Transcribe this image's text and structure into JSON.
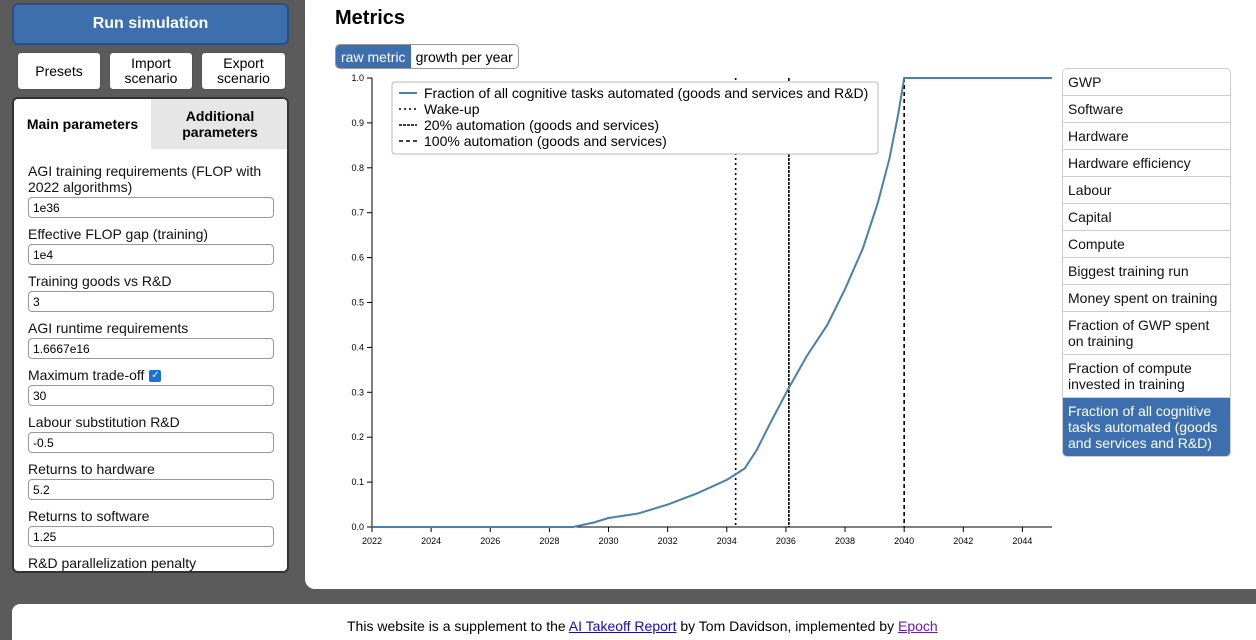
{
  "sidebar": {
    "run_label": "Run simulation",
    "presets_label": "Presets",
    "import_label": "Import scenario",
    "export_label": "Export scenario",
    "tabs": [
      "Main parameters",
      "Additional parameters"
    ],
    "params": [
      {
        "label": "AGI training requirements (FLOP with 2022 algorithms)",
        "value": "1e36"
      },
      {
        "label": "Effective FLOP gap (training)",
        "value": "1e4"
      },
      {
        "label": "Training goods vs R&D",
        "value": "3"
      },
      {
        "label": "AGI runtime requirements",
        "value": "1.6667e16"
      },
      {
        "label": "Maximum trade-off",
        "value": "30"
      },
      {
        "label": "Labour substitution R&D",
        "value": "-0.5"
      },
      {
        "label": "Returns to hardware",
        "value": "5.2"
      },
      {
        "label": "Returns to software",
        "value": "1.25"
      },
      {
        "label": "R&D parallelization penalty",
        "value": ""
      }
    ]
  },
  "main": {
    "title": "Metrics",
    "toggle": [
      "raw metric",
      "growth per year"
    ],
    "metrics": [
      "GWP",
      "Software",
      "Hardware",
      "Hardware efficiency",
      "Labour",
      "Capital",
      "Compute",
      "Biggest training run",
      "Money spent on training",
      "Fraction of GWP spent on training",
      "Fraction of compute invested in training",
      "Fraction of all cognitive tasks automated (goods and services and R&D)"
    ],
    "active_metric_index": 11
  },
  "chart_data": {
    "type": "line",
    "x_ticks": [
      "2022",
      "2024",
      "2026",
      "2028",
      "2030",
      "2032",
      "2034",
      "2036",
      "2038",
      "2040",
      "2042",
      "2044"
    ],
    "y_ticks": [
      "0.0",
      "0.1",
      "0.2",
      "0.3",
      "0.4",
      "0.5",
      "0.6",
      "0.7",
      "0.8",
      "0.9",
      "1.0"
    ],
    "xlim": [
      2022,
      2045
    ],
    "ylim": [
      0,
      1
    ],
    "series": [
      {
        "name": "Fraction of all cognitive tasks automated (goods and services and R&D)",
        "color": "#4a7fac",
        "x": [
          2022,
          2028.8,
          2029.5,
          2030,
          2031,
          2032,
          2033,
          2034,
          2034.6,
          2035,
          2035.5,
          2036.1,
          2036.7,
          2037.4,
          2038,
          2038.6,
          2039.1,
          2039.5,
          2039.8,
          2040,
          2045
        ],
        "y": [
          0,
          0,
          0.01,
          0.02,
          0.03,
          0.05,
          0.075,
          0.105,
          0.13,
          0.17,
          0.235,
          0.31,
          0.38,
          0.45,
          0.53,
          0.62,
          0.72,
          0.82,
          0.92,
          1.0,
          1.0
        ]
      }
    ],
    "vlines": [
      {
        "name": "Wake-up",
        "x": 2034.3,
        "style": "dotted"
      },
      {
        "name": "20% automation (goods and services)",
        "x": 2036.1,
        "style": "densedash"
      },
      {
        "name": "100% automation (goods and services)",
        "x": 2040.0,
        "style": "dashed"
      }
    ],
    "legend": "top-left"
  },
  "footer": {
    "prefix": "This website is a supplement to the ",
    "link1": "AI Takeoff Report",
    "middle": " by Tom Davidson, implemented by ",
    "link2": "Epoch"
  }
}
